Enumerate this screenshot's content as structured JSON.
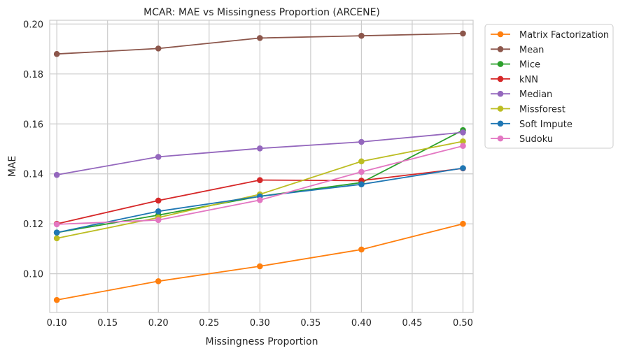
{
  "chart_data": {
    "type": "line",
    "title": "MCAR: MAE vs Missingness Proportion (ARCENE)",
    "xlabel": "Missingness Proportion",
    "ylabel": "MAE",
    "xlim": [
      0.093,
      0.51
    ],
    "ylim": [
      0.0845,
      0.2015
    ],
    "xticks": [
      0.1,
      0.15,
      0.2,
      0.25,
      0.3,
      0.35,
      0.4,
      0.45,
      0.5
    ],
    "xtick_labels": [
      "0.10",
      "0.15",
      "0.20",
      "0.25",
      "0.30",
      "0.35",
      "0.40",
      "0.45",
      "0.50"
    ],
    "yticks": [
      0.1,
      0.12,
      0.14,
      0.16,
      0.18,
      0.2
    ],
    "ytick_labels": [
      "0.10",
      "0.12",
      "0.14",
      "0.16",
      "0.18",
      "0.20"
    ],
    "grid": true,
    "legend_position": "outside-right-top",
    "x": [
      0.1,
      0.2,
      0.3,
      0.4,
      0.5
    ],
    "series": [
      {
        "name": "Matrix Factorization",
        "color": "#ff7f0e",
        "values": [
          0.0895,
          0.097,
          0.103,
          0.1097,
          0.12
        ]
      },
      {
        "name": "Mean",
        "color": "#8c564b",
        "values": [
          0.188,
          0.1902,
          0.1944,
          0.1953,
          0.1962
        ]
      },
      {
        "name": "Mice",
        "color": "#2ca02c",
        "values": [
          0.1165,
          0.1235,
          0.131,
          0.1365,
          0.1575
        ]
      },
      {
        "name": "kNN",
        "color": "#d62728",
        "values": [
          0.12,
          0.1293,
          0.1375,
          0.1373,
          0.1422
        ]
      },
      {
        "name": "Median",
        "color": "#9467bd",
        "values": [
          0.1396,
          0.1468,
          0.1502,
          0.1528,
          0.1566
        ]
      },
      {
        "name": "Missforest",
        "color": "#bcbd22",
        "values": [
          0.1142,
          0.1225,
          0.1318,
          0.145,
          0.153
        ]
      },
      {
        "name": "Soft Impute",
        "color": "#1f77b4",
        "values": [
          0.1165,
          0.125,
          0.131,
          0.1358,
          0.1423
        ]
      },
      {
        "name": "Sudoku",
        "color": "#e377c2",
        "values": [
          0.1198,
          0.1215,
          0.1295,
          0.1408,
          0.1512
        ]
      }
    ]
  }
}
